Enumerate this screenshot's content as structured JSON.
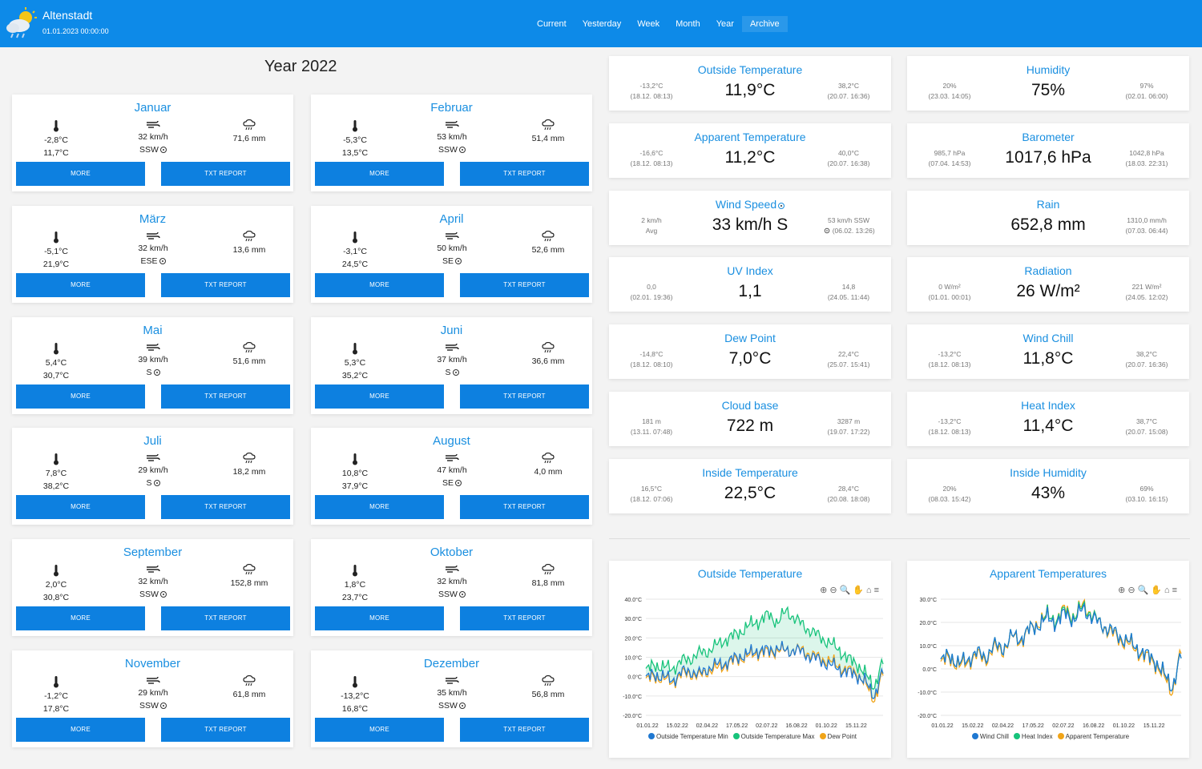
{
  "header": {
    "station": "Altenstadt",
    "datetime": "01.01.2023 00:00:00",
    "nav": [
      "Current",
      "Yesterday",
      "Week",
      "Month",
      "Year",
      "Archive"
    ]
  },
  "page_title": "Year 2022",
  "buttons": {
    "more": "MORE",
    "txt": "TXT REPORT"
  },
  "months": [
    {
      "name": "Januar",
      "temp_min": "-2,8°C",
      "temp_max": "11,7°C",
      "wind": "32 km/h",
      "wind_dir": "SSW",
      "rain": "71,6 mm"
    },
    {
      "name": "Februar",
      "temp_min": "-5,3°C",
      "temp_max": "13,5°C",
      "wind": "53 km/h",
      "wind_dir": "SSW",
      "rain": "51,4 mm"
    },
    {
      "name": "März",
      "temp_min": "-5,1°C",
      "temp_max": "21,9°C",
      "wind": "32 km/h",
      "wind_dir": "ESE",
      "rain": "13,6 mm"
    },
    {
      "name": "April",
      "temp_min": "-3,1°C",
      "temp_max": "24,5°C",
      "wind": "50 km/h",
      "wind_dir": "SE",
      "rain": "52,6 mm"
    },
    {
      "name": "Mai",
      "temp_min": "5,4°C",
      "temp_max": "30,7°C",
      "wind": "39 km/h",
      "wind_dir": "S",
      "rain": "51,6 mm"
    },
    {
      "name": "Juni",
      "temp_min": "5,3°C",
      "temp_max": "35,2°C",
      "wind": "37 km/h",
      "wind_dir": "S",
      "rain": "36,6 mm"
    },
    {
      "name": "Juli",
      "temp_min": "7,8°C",
      "temp_max": "38,2°C",
      "wind": "29 km/h",
      "wind_dir": "S",
      "rain": "18,2 mm"
    },
    {
      "name": "August",
      "temp_min": "10,8°C",
      "temp_max": "37,9°C",
      "wind": "47 km/h",
      "wind_dir": "SE",
      "rain": "4,0 mm"
    },
    {
      "name": "September",
      "temp_min": "2,0°C",
      "temp_max": "30,8°C",
      "wind": "32 km/h",
      "wind_dir": "SSW",
      "rain": "152,8 mm"
    },
    {
      "name": "Oktober",
      "temp_min": "1,8°C",
      "temp_max": "23,7°C",
      "wind": "32 km/h",
      "wind_dir": "SSW",
      "rain": "81,8 mm"
    },
    {
      "name": "November",
      "temp_min": "-1,2°C",
      "temp_max": "17,8°C",
      "wind": "29 km/h",
      "wind_dir": "SSW",
      "rain": "61,8 mm"
    },
    {
      "name": "Dezember",
      "temp_min": "-13,2°C",
      "temp_max": "16,8°C",
      "wind": "35 km/h",
      "wind_dir": "SSW",
      "rain": "56,8 mm"
    }
  ],
  "tiles": [
    {
      "title": "Outside Temperature",
      "value": "11,9°C",
      "min": "-13,2°C",
      "min_at": "(18.12. 08:13)",
      "max": "38,2°C",
      "max_at": "(20.07. 16:36)"
    },
    {
      "title": "Humidity",
      "value": "75%",
      "min": "20%",
      "min_at": "(23.03. 14:05)",
      "max": "97%",
      "max_at": "(02.01. 06:00)"
    },
    {
      "title": "Apparent Temperature",
      "value": "11,2°C",
      "min": "-16,6°C",
      "min_at": "(18.12. 08:13)",
      "max": "40,0°C",
      "max_at": "(20.07. 16:38)"
    },
    {
      "title": "Barometer",
      "value": "1017,6 hPa",
      "min": "985,7 hPa",
      "min_at": "(07.04. 14:53)",
      "max": "1042,8 hPa",
      "max_at": "(18.03. 22:31)"
    },
    {
      "title": "Wind Speed",
      "value": "33 km/h S",
      "min": "2 km/h",
      "min_at": "Avg",
      "max": "53 km/h SSW",
      "max_at": "(06.02. 13:26)"
    },
    {
      "title": "Rain",
      "value": "652,8 mm",
      "min": "",
      "min_at": "",
      "max": "1310,0 mm/h",
      "max_at": "(07.03. 06:44)"
    },
    {
      "title": "UV Index",
      "value": "1,1",
      "min": "0,0",
      "min_at": "(02.01. 19:36)",
      "max": "14,8",
      "max_at": "(24.05. 11:44)"
    },
    {
      "title": "Radiation",
      "value": "26 W/m²",
      "min": "0 W/m²",
      "min_at": "(01.01. 00:01)",
      "max": "221 W/m²",
      "max_at": "(24.05. 12:02)"
    },
    {
      "title": "Dew Point",
      "value": "7,0°C",
      "min": "-14,8°C",
      "min_at": "(18.12. 08:10)",
      "max": "22,4°C",
      "max_at": "(25.07. 15:41)"
    },
    {
      "title": "Wind Chill",
      "value": "11,8°C",
      "min": "-13,2°C",
      "min_at": "(18.12. 08:13)",
      "max": "38,2°C",
      "max_at": "(20.07. 16:36)"
    },
    {
      "title": "Cloud base",
      "value": "722 m",
      "min": "181 m",
      "min_at": "(13.11. 07:48)",
      "max": "3287 m",
      "max_at": "(19.07. 17:22)"
    },
    {
      "title": "Heat Index",
      "value": "11,4°C",
      "min": "-13,2°C",
      "min_at": "(18.12. 08:13)",
      "max": "38,7°C",
      "max_at": "(20.07. 15:08)"
    },
    {
      "title": "Inside Temperature",
      "value": "22,5°C",
      "min": "16,5°C",
      "min_at": "(18.12. 07:06)",
      "max": "28,4°C",
      "max_at": "(20.08. 18:08)"
    },
    {
      "title": "Inside Humidity",
      "value": "43%",
      "min": "20%",
      "min_at": "(08.03. 15:42)",
      "max": "69%",
      "max_at": "(03.10. 16:15)"
    }
  ],
  "charts_meta": {
    "toolbar": "⊕⊖🔍✋⌂≡"
  },
  "chart_data": [
    {
      "type": "line",
      "title": "Outside Temperature",
      "x_ticks": [
        "01.01.22",
        "15.02.22",
        "02.04.22",
        "17.05.22",
        "02.07.22",
        "16.08.22",
        "01.10.22",
        "15.11.22"
      ],
      "y_ticks": [
        "40.0°C",
        "30.0°C",
        "20.0°C",
        "10.0°C",
        "0.0°C",
        "-10.0°C",
        "-20.0°C"
      ],
      "ylim": [
        -20,
        40
      ],
      "series": [
        {
          "name": "Outside Temperature Min",
          "color": "#1f78d1",
          "values": [
            -1,
            1,
            0,
            -2,
            2,
            3,
            1,
            4,
            6,
            7,
            9,
            11,
            12,
            14,
            13,
            15,
            13,
            14,
            12,
            10,
            8,
            6,
            4,
            2,
            1,
            -3,
            -10,
            3
          ]
        },
        {
          "name": "Outside Temperature Max",
          "color": "#17c37b",
          "values": [
            3,
            6,
            5,
            4,
            8,
            9,
            12,
            13,
            16,
            19,
            21,
            24,
            27,
            29,
            32,
            28,
            34,
            30,
            26,
            23,
            20,
            17,
            14,
            9,
            7,
            1,
            -5,
            8
          ]
        },
        {
          "name": "Dew Point",
          "color": "#f0a418",
          "values": [
            -2,
            0,
            -1,
            -3,
            1,
            2,
            0,
            3,
            4,
            6,
            8,
            10,
            11,
            13,
            12,
            14,
            13,
            14,
            13,
            11,
            9,
            8,
            5,
            3,
            2,
            -4,
            -12,
            2
          ]
        }
      ]
    },
    {
      "type": "line",
      "title": "Apparent Temperatures",
      "x_ticks": [
        "01.01.22",
        "15.02.22",
        "02.04.22",
        "17.05.22",
        "02.07.22",
        "16.08.22",
        "01.10.22",
        "15.11.22"
      ],
      "y_ticks": [
        "30.0°C",
        "20.0°C",
        "10.0°C",
        "0.0°C",
        "-10.0°C",
        "-20.0°C"
      ],
      "ylim": [
        -20,
        30
      ],
      "series": [
        {
          "name": "Wind Chill",
          "color": "#1f78d1",
          "values": [
            3,
            6,
            2,
            4,
            7,
            5,
            10,
            9,
            14,
            13,
            17,
            19,
            22,
            20,
            24,
            21,
            26,
            22,
            19,
            17,
            14,
            12,
            9,
            6,
            4,
            -2,
            -8,
            6
          ]
        },
        {
          "name": "Heat Index",
          "color": "#17c37b",
          "values": [
            3,
            6,
            2,
            4,
            7,
            5,
            10,
            9,
            14,
            13,
            17,
            19,
            23,
            21,
            25,
            22,
            27,
            23,
            19,
            17,
            14,
            12,
            9,
            6,
            4,
            -2,
            -8,
            6
          ]
        },
        {
          "name": "Apparent Temperature",
          "color": "#f0a418",
          "values": [
            2,
            5,
            1,
            3,
            6,
            4,
            9,
            8,
            14,
            12,
            17,
            20,
            23,
            21,
            26,
            22,
            28,
            23,
            19,
            16,
            13,
            11,
            8,
            5,
            3,
            -3,
            -10,
            8
          ]
        }
      ]
    }
  ]
}
